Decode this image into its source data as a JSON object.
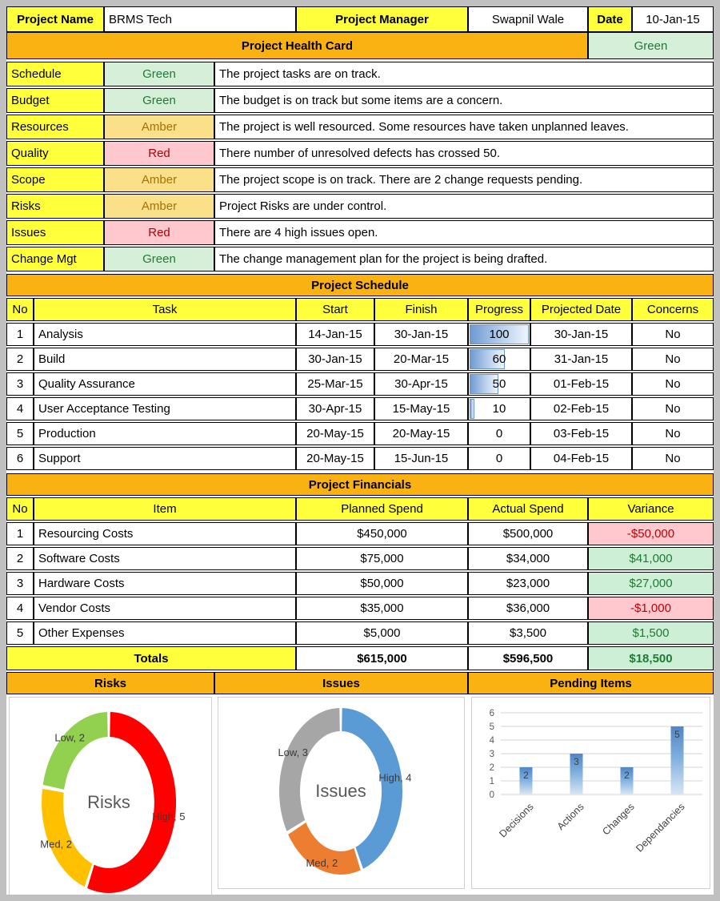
{
  "header": {
    "project_name_label": "Project Name",
    "project_name_value": "BRMS Tech",
    "project_manager_label": "Project Manager",
    "project_manager_value": "Swapnil Wale",
    "date_label": "Date",
    "date_value": "10-Jan-15"
  },
  "health_card": {
    "title": "Project Health Card",
    "overall_status": "Green",
    "rows": [
      {
        "label": "Schedule",
        "status": "Green",
        "description": "The project tasks are on track."
      },
      {
        "label": "Budget",
        "status": "Green",
        "description": "The budget is on track but some items are a concern."
      },
      {
        "label": "Resources",
        "status": "Amber",
        "description": "The project is well resourced. Some resources have taken unplanned leaves."
      },
      {
        "label": "Quality",
        "status": "Red",
        "description": "There number of unresolved defects has crossed 50."
      },
      {
        "label": "Scope",
        "status": "Amber",
        "description": "The project scope is on track. There are 2 change requests pending."
      },
      {
        "label": "Risks",
        "status": "Amber",
        "description": "Project Risks are under control."
      },
      {
        "label": "Issues",
        "status": "Red",
        "description": "There are 4 high issues open."
      },
      {
        "label": "Change Mgt",
        "status": "Green",
        "description": "The change management plan for the project is being drafted."
      }
    ]
  },
  "schedule": {
    "title": "Project Schedule",
    "headers": {
      "no": "No",
      "task": "Task",
      "start": "Start",
      "finish": "Finish",
      "progress": "Progress",
      "projected": "Projected Date",
      "concerns": "Concerns"
    },
    "rows": [
      {
        "no": "1",
        "task": "Analysis",
        "start": "14-Jan-15",
        "finish": "30-Jan-15",
        "progress": 100,
        "projected": "30-Jan-15",
        "concerns": "No"
      },
      {
        "no": "2",
        "task": "Build",
        "start": "30-Jan-15",
        "finish": "20-Mar-15",
        "progress": 60,
        "projected": "31-Jan-15",
        "concerns": "No"
      },
      {
        "no": "3",
        "task": "Quality Assurance",
        "start": "25-Mar-15",
        "finish": "30-Apr-15",
        "progress": 50,
        "projected": "01-Feb-15",
        "concerns": "No"
      },
      {
        "no": "4",
        "task": "User Acceptance Testing",
        "start": "30-Apr-15",
        "finish": "15-May-15",
        "progress": 10,
        "projected": "02-Feb-15",
        "concerns": "No"
      },
      {
        "no": "5",
        "task": "Production",
        "start": "20-May-15",
        "finish": "20-May-15",
        "progress": 0,
        "projected": "03-Feb-15",
        "concerns": "No"
      },
      {
        "no": "6",
        "task": "Support",
        "start": "20-May-15",
        "finish": "15-Jun-15",
        "progress": 0,
        "projected": "04-Feb-15",
        "concerns": "No"
      }
    ]
  },
  "financials": {
    "title": "Project Financials",
    "headers": {
      "no": "No",
      "item": "Item",
      "planned": "Planned Spend",
      "actual": "Actual Spend",
      "variance": "Variance"
    },
    "rows": [
      {
        "no": "1",
        "item": "Resourcing Costs",
        "planned": "$450,000",
        "actual": "$500,000",
        "variance": "-$50,000"
      },
      {
        "no": "2",
        "item": "Software Costs",
        "planned": "$75,000",
        "actual": "$34,000",
        "variance": "$41,000"
      },
      {
        "no": "3",
        "item": "Hardware Costs",
        "planned": "$50,000",
        "actual": "$23,000",
        "variance": "$27,000"
      },
      {
        "no": "4",
        "item": "Vendor Costs",
        "planned": "$35,000",
        "actual": "$36,000",
        "variance": "-$1,000"
      },
      {
        "no": "5",
        "item": "Other Expenses",
        "planned": "$5,000",
        "actual": "$3,500",
        "variance": "$1,500"
      }
    ],
    "totals": {
      "label": "Totals",
      "planned": "$615,000",
      "actual": "$596,500",
      "variance": "$18,500"
    }
  },
  "bottom": {
    "risks_header": "Risks",
    "issues_header": "Issues",
    "pending_header": "Pending Items"
  },
  "chart_data": [
    {
      "id": "risks",
      "type": "donut",
      "title": "Risks",
      "series": [
        {
          "name": "High",
          "value": 5,
          "label": "High, 5",
          "color": "#FF0000"
        },
        {
          "name": "Med",
          "value": 2,
          "label": "Med, 2",
          "color": "#FFC000"
        },
        {
          "name": "Low",
          "value": 2,
          "label": "Low, 2",
          "color": "#92D050"
        }
      ]
    },
    {
      "id": "issues",
      "type": "donut",
      "title": "Issues",
      "series": [
        {
          "name": "High",
          "value": 4,
          "label": "High, 4",
          "color": "#5B9BD5"
        },
        {
          "name": "Med",
          "value": 2,
          "label": "Med, 2",
          "color": "#ED7D31"
        },
        {
          "name": "Low",
          "value": 3,
          "label": "Low, 3",
          "color": "#A6A6A6"
        }
      ]
    },
    {
      "id": "pending",
      "type": "bar",
      "categories": [
        "Decisions",
        "Actions",
        "Changes",
        "Dependancies"
      ],
      "values": [
        2,
        3,
        2,
        5
      ],
      "data_labels": [
        "2",
        "3",
        "2",
        "5"
      ],
      "ylim": [
        0,
        6
      ],
      "yticks": [
        0,
        1,
        2,
        3,
        4,
        5,
        6
      ],
      "bar_color": "#5B9BD5",
      "grid": true,
      "legend": "none"
    }
  ],
  "colors": {
    "accent_orange": "#FAB112",
    "accent_yellow": "#FFFF3B",
    "status_green_bg": "#D6EFD9",
    "status_green_text": "#1F7A34",
    "status_amber_bg": "#FBE08A",
    "status_amber_text": "#A87000",
    "status_red_bg": "#FFC7CE",
    "status_red_text": "#B40000",
    "progress_bar_blue": "#6F9BD2",
    "frame_gray": "#C0C0C0"
  }
}
